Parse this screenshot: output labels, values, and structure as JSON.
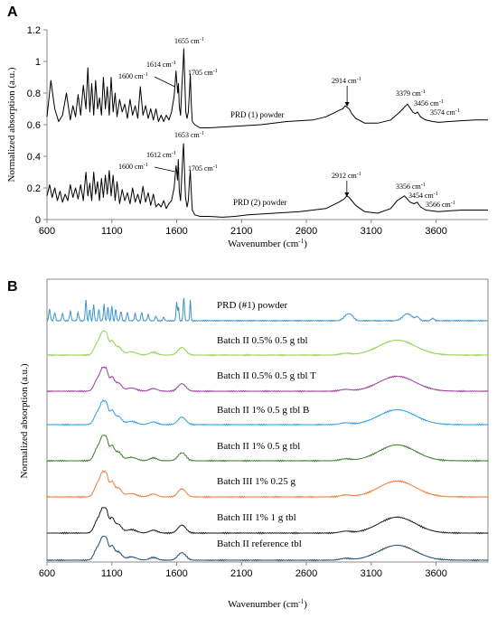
{
  "chart_data": [
    {
      "panel_label": "A",
      "type": "line",
      "xlabel": "Wavenumber  (cm",
      "xlabel_sup": "-1",
      "xlabel_tail": ")",
      "ylabel": "Normalized absorption (a.u.)",
      "xlim": [
        600,
        4000
      ],
      "ylim": [
        0,
        1.2
      ],
      "xticks": [
        "600",
        "1100",
        "1600",
        "2100",
        "2600",
        "3100",
        "3600"
      ],
      "yticks": [
        "0",
        "0.2",
        "0.4",
        "0.6",
        "0.8",
        "1",
        "1.2"
      ],
      "grid": false,
      "legend": "none",
      "series": [
        {
          "name": "PRD (1) powder",
          "color": "#000000",
          "x": [
            600,
            630,
            660,
            690,
            720,
            750,
            780,
            800,
            820,
            840,
            860,
            880,
            900,
            915,
            930,
            945,
            960,
            975,
            990,
            1005,
            1020,
            1035,
            1050,
            1065,
            1080,
            1095,
            1110,
            1125,
            1140,
            1160,
            1180,
            1200,
            1220,
            1240,
            1260,
            1280,
            1300,
            1320,
            1340,
            1360,
            1380,
            1400,
            1420,
            1440,
            1460,
            1480,
            1500,
            1520,
            1540,
            1560,
            1580,
            1595,
            1600,
            1608,
            1614,
            1620,
            1630,
            1640,
            1648,
            1655,
            1662,
            1670,
            1680,
            1690,
            1698,
            1705,
            1712,
            1720,
            1740,
            1780,
            1850,
            1950,
            2050,
            2150,
            2250,
            2350,
            2450,
            2550,
            2650,
            2750,
            2800,
            2850,
            2880,
            2900,
            2914,
            2930,
            2950,
            2980,
            3050,
            3150,
            3250,
            3320,
            3379,
            3420,
            3440,
            3456,
            3480,
            3520,
            3574,
            3620,
            3700,
            3800,
            3900,
            4000
          ],
          "y": [
            0.65,
            0.88,
            0.7,
            0.62,
            0.66,
            0.8,
            0.63,
            0.72,
            0.65,
            0.79,
            0.66,
            0.85,
            0.7,
            0.96,
            0.68,
            0.86,
            0.66,
            0.88,
            0.7,
            0.77,
            0.66,
            0.9,
            0.7,
            0.84,
            0.66,
            0.9,
            0.68,
            0.8,
            0.65,
            0.76,
            0.68,
            0.73,
            0.64,
            0.76,
            0.66,
            0.72,
            0.64,
            0.84,
            0.66,
            0.72,
            0.64,
            0.7,
            0.63,
            0.7,
            0.62,
            0.66,
            0.62,
            0.66,
            0.63,
            0.68,
            0.78,
            0.94,
            0.88,
            0.8,
            0.86,
            0.72,
            0.66,
            0.85,
            0.95,
            1.08,
            0.9,
            0.68,
            0.64,
            0.68,
            0.8,
            0.92,
            0.74,
            0.62,
            0.6,
            0.58,
            0.58,
            0.585,
            0.59,
            0.595,
            0.6,
            0.61,
            0.62,
            0.625,
            0.63,
            0.65,
            0.67,
            0.69,
            0.7,
            0.72,
            0.71,
            0.7,
            0.67,
            0.64,
            0.61,
            0.61,
            0.63,
            0.68,
            0.73,
            0.68,
            0.67,
            0.68,
            0.65,
            0.63,
            0.62,
            0.615,
            0.62,
            0.625,
            0.63,
            0.63
          ]
        },
        {
          "name": "PRD (2) powder",
          "color": "#000000",
          "x": [
            600,
            620,
            640,
            660,
            680,
            700,
            720,
            740,
            760,
            780,
            800,
            820,
            840,
            860,
            880,
            900,
            915,
            930,
            945,
            960,
            975,
            990,
            1005,
            1020,
            1035,
            1050,
            1065,
            1080,
            1095,
            1110,
            1125,
            1140,
            1160,
            1180,
            1200,
            1220,
            1240,
            1260,
            1280,
            1300,
            1320,
            1340,
            1360,
            1380,
            1400,
            1420,
            1440,
            1460,
            1480,
            1500,
            1520,
            1540,
            1560,
            1580,
            1595,
            1600,
            1606,
            1612,
            1620,
            1630,
            1640,
            1648,
            1653,
            1660,
            1668,
            1680,
            1690,
            1698,
            1705,
            1712,
            1720,
            1740,
            1780,
            1850,
            1950,
            2050,
            2150,
            2250,
            2350,
            2450,
            2550,
            2650,
            2750,
            2800,
            2850,
            2890,
            2912,
            2930,
            2950,
            2980,
            3050,
            3150,
            3250,
            3300,
            3356,
            3400,
            3430,
            3454,
            3480,
            3520,
            3566,
            3620,
            3700,
            3800,
            3900,
            4000
          ],
          "y": [
            0.15,
            0.22,
            0.14,
            0.2,
            0.12,
            0.18,
            0.11,
            0.16,
            0.12,
            0.22,
            0.14,
            0.2,
            0.13,
            0.22,
            0.12,
            0.3,
            0.15,
            0.23,
            0.12,
            0.3,
            0.16,
            0.24,
            0.12,
            0.26,
            0.14,
            0.28,
            0.16,
            0.31,
            0.15,
            0.28,
            0.12,
            0.24,
            0.1,
            0.19,
            0.12,
            0.17,
            0.1,
            0.2,
            0.11,
            0.16,
            0.1,
            0.21,
            0.11,
            0.17,
            0.09,
            0.16,
            0.08,
            0.1,
            0.08,
            0.12,
            0.07,
            0.1,
            0.12,
            0.2,
            0.34,
            0.31,
            0.25,
            0.38,
            0.18,
            0.12,
            0.29,
            0.42,
            0.48,
            0.32,
            0.14,
            0.08,
            0.12,
            0.24,
            0.31,
            0.18,
            0.06,
            0.03,
            0.02,
            0.02,
            0.015,
            0.02,
            0.03,
            0.035,
            0.04,
            0.045,
            0.05,
            0.06,
            0.07,
            0.09,
            0.11,
            0.13,
            0.15,
            0.14,
            0.12,
            0.09,
            0.05,
            0.04,
            0.07,
            0.12,
            0.15,
            0.11,
            0.1,
            0.11,
            0.08,
            0.06,
            0.055,
            0.05,
            0.055,
            0.06,
            0.06,
            0.06
          ]
        }
      ],
      "annotations": [
        {
          "text": "1655 cm",
          "sup": "-1",
          "x": 1655
        },
        {
          "text": "1614 cm",
          "sup": "-1",
          "x": 1614
        },
        {
          "text": "1600 cm",
          "sup": "-1",
          "x": 1600
        },
        {
          "text": "1705 cm",
          "sup": "-1",
          "x": 1705
        },
        {
          "text": "2914 cm",
          "sup": "-1",
          "x": 2914
        },
        {
          "text": "3379 cm",
          "sup": "-1",
          "x": 3379
        },
        {
          "text": "3456 cm",
          "sup": "-1",
          "x": 3456
        },
        {
          "text": "3574 cm",
          "sup": "-1",
          "x": 3574
        },
        {
          "text": "1653 cm",
          "sup": "-1",
          "x": 1653
        },
        {
          "text": "1612 cm",
          "sup": "-1",
          "x": 1612
        },
        {
          "text": "1600 cm",
          "sup": "-1",
          "x": 1600
        },
        {
          "text": "1705 cm",
          "sup": "-1",
          "x": 1705
        },
        {
          "text": "2912 cm",
          "sup": "-1",
          "x": 2912
        },
        {
          "text": "3356 cm",
          "sup": "-1",
          "x": 3356
        },
        {
          "text": "3454 cm",
          "sup": "-1",
          "x": 3454
        },
        {
          "text": "3566 cm",
          "sup": "-1",
          "x": 3566
        }
      ]
    },
    {
      "panel_label": "B",
      "type": "line",
      "xlabel": "Wavenumber (cm",
      "xlabel_sup": "-1",
      "xlabel_tail": ")",
      "ylabel": "Normalized absorption (a.u.)",
      "xlim": [
        600,
        4000
      ],
      "xticks": [
        "600",
        "1100",
        "1600",
        "2100",
        "2600",
        "3100",
        "3600"
      ],
      "grid": false,
      "legend": "inline labels",
      "series": [
        {
          "name": "PRD (#1) powder",
          "color": "#3a95c9",
          "profile": "powder"
        },
        {
          "name": "Batch II 0.5% 0.5 g tbl",
          "color": "#8fd24a",
          "profile": "tablet"
        },
        {
          "name": "Batch II 0.5% 0.5 g tbl T",
          "color": "#9b3a9b",
          "profile": "tablet"
        },
        {
          "name": "Batch II 1% 0.5 g tbl B",
          "color": "#2d9fd8",
          "profile": "tablet"
        },
        {
          "name": "Batch II 1% 0.5 g tbl",
          "color": "#3a7d2a",
          "profile": "tablet"
        },
        {
          "name": "Batch III 1% 0.25 g",
          "color": "#ef7b3a",
          "profile": "tablet"
        },
        {
          "name": "Batch III 1% 1 g tbl",
          "color": "#1a1a1a",
          "profile": "tablet"
        },
        {
          "name": "Batch II reference tbl",
          "color": "#1f4e6a",
          "profile": "tablet"
        }
      ]
    }
  ]
}
